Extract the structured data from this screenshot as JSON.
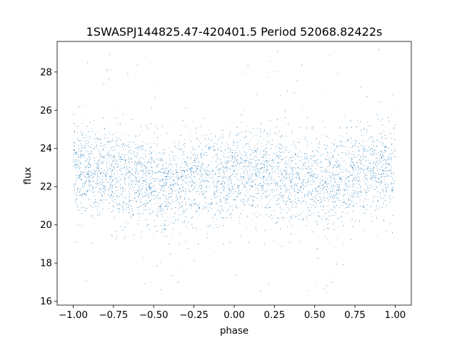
{
  "chart_data": {
    "type": "scatter",
    "title": "1SWASPJ144825.47-420401.5 Period 52068.82422s",
    "xlabel": "phase",
    "ylabel": "flux",
    "xlim": [
      -1.1,
      1.1
    ],
    "ylim": [
      15.8,
      29.6
    ],
    "xticks": [
      -1.0,
      -0.75,
      -0.5,
      -0.25,
      0.0,
      0.25,
      0.5,
      0.75,
      1.0
    ],
    "xtick_labels": [
      "−1.00",
      "−0.75",
      "−0.50",
      "−0.25",
      "0.00",
      "0.25",
      "0.50",
      "0.75",
      "1.00"
    ],
    "yticks": [
      16,
      18,
      20,
      22,
      24,
      26,
      28
    ],
    "ytick_labels": [
      "16",
      "18",
      "20",
      "22",
      "24",
      "26",
      "28"
    ],
    "grid": false,
    "legend": "none",
    "series": [
      {
        "color": "#1f77b4",
        "marker_size": 0.8,
        "phase_range": [
          -1.0,
          1.0
        ],
        "mean_flux_at_phase": {
          "phase": [
            -1.0,
            -0.75,
            -0.5,
            -0.45,
            -0.25,
            0.0,
            0.25,
            0.5,
            0.55,
            0.75,
            1.0
          ],
          "flux": [
            22.9,
            22.8,
            22.3,
            22.0,
            22.4,
            22.6,
            22.8,
            22.3,
            22.0,
            22.7,
            22.9
          ]
        },
        "flux_range_min": 16.4,
        "flux_range_max": 29.2,
        "dip_phases": [
          -0.45,
          0.55
        ],
        "dip_min_flux": 16.4
      }
    ]
  }
}
